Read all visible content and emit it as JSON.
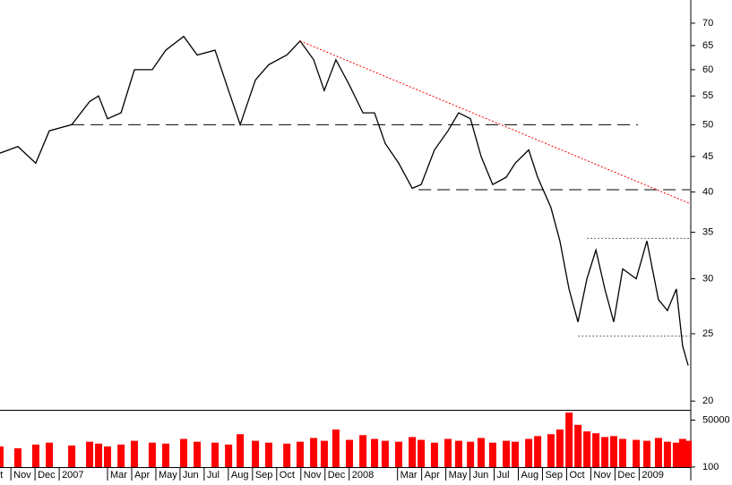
{
  "chart_data": [
    {
      "type": "line",
      "log_scale": true,
      "x": [
        0.55,
        1.29,
        2.03,
        2.59,
        3.52,
        4.26,
        4.63,
        5.0,
        5.56,
        6.11,
        6.85,
        7.41,
        8.15,
        8.71,
        9.45,
        10.01,
        10.49,
        11.12,
        11.67,
        12.42,
        12.97,
        13.53,
        13.97,
        14.45,
        15.01,
        15.57,
        16.05,
        16.49,
        17.05,
        17.61,
        17.98,
        18.53,
        19.09,
        19.53,
        20.02,
        20.46,
        20.94,
        21.5,
        21.87,
        22.43,
        22.8,
        23.35,
        23.72,
        24.1,
        24.47,
        24.84,
        25.21,
        25.58,
        25.95,
        26.32,
        26.88,
        27.32,
        27.8,
        28.17,
        28.54,
        28.8,
        29.03
      ],
      "series": [
        {
          "color": "#000000",
          "values": [
            45.5,
            46.5,
            44,
            49,
            50,
            54,
            55,
            51,
            52,
            60,
            60,
            64,
            67,
            63,
            64,
            56,
            50,
            58,
            61,
            63,
            66,
            62,
            56,
            62,
            57,
            52,
            52,
            47,
            44,
            40.5,
            41,
            46,
            49,
            52,
            51,
            45,
            41,
            42,
            44,
            46,
            42,
            38,
            34,
            29,
            26,
            30,
            33,
            29,
            26,
            31,
            30,
            34,
            28,
            27,
            29,
            24,
            22.5
          ]
        }
      ],
      "xlim": [
        0.55,
        29.1
      ],
      "ylim": [
        19.6,
        75.6
      ],
      "yticks": [
        20,
        25,
        30,
        35,
        40,
        45,
        50,
        55,
        60,
        65,
        70
      ],
      "xticks": [
        {
          "value": 0.45,
          "label": "t"
        },
        {
          "value": 1,
          "label": "Nov"
        },
        {
          "value": 2,
          "label": "Dec"
        },
        {
          "value": 3,
          "label": "2007"
        },
        {
          "value": 5,
          "label": "Mar"
        },
        {
          "value": 6,
          "label": "Apr"
        },
        {
          "value": 7,
          "label": "May"
        },
        {
          "value": 8,
          "label": "Jun"
        },
        {
          "value": 9,
          "label": "Jul"
        },
        {
          "value": 10,
          "label": "Aug"
        },
        {
          "value": 11,
          "label": "Sep"
        },
        {
          "value": 12,
          "label": "Oct"
        },
        {
          "value": 13,
          "label": "Nov"
        },
        {
          "value": 14,
          "label": "Dec"
        },
        {
          "value": 15,
          "label": "2008"
        },
        {
          "value": 17,
          "label": "Mar"
        },
        {
          "value": 18,
          "label": "Apr"
        },
        {
          "value": 19,
          "label": "May"
        },
        {
          "value": 20,
          "label": "Jun"
        },
        {
          "value": 21,
          "label": "Jul"
        },
        {
          "value": 22,
          "label": "Aug"
        },
        {
          "value": 23,
          "label": "Sep"
        },
        {
          "value": 24,
          "label": "Oct"
        },
        {
          "value": 25,
          "label": "Nov"
        },
        {
          "value": 26,
          "label": "Dec"
        },
        {
          "value": 27,
          "label": "2009"
        }
      ],
      "lines": [
        {
          "x": [
            3.52,
            26.95
          ],
          "y": [
            50,
            50
          ],
          "color": "#000000",
          "dash": "dashed"
        },
        {
          "x": [
            17.87,
            29.1
          ],
          "y": [
            40.3,
            40.3
          ],
          "color": "#000000",
          "dash": "dashed"
        },
        {
          "x": [
            24.84,
            29.1
          ],
          "y": [
            34.3,
            34.3
          ],
          "color": "#666666",
          "dash": "dotted"
        },
        {
          "x": [
            24.47,
            29.1
          ],
          "y": [
            24.8,
            24.8
          ],
          "color": "#666666",
          "dash": "dotted"
        },
        {
          "x": [
            12.97,
            29.1
          ],
          "y": [
            66,
            38.5
          ],
          "color": "#ff0000",
          "dash": "dotted"
        }
      ]
    },
    {
      "type": "bar",
      "color": "#ff0000",
      "x": [
        0.55,
        1.29,
        2.03,
        2.59,
        3.52,
        4.26,
        4.63,
        5.0,
        5.56,
        6.11,
        6.85,
        7.41,
        8.15,
        8.71,
        9.45,
        10.01,
        10.49,
        11.12,
        11.67,
        12.42,
        12.97,
        13.53,
        13.97,
        14.45,
        15.01,
        15.57,
        16.05,
        16.49,
        17.05,
        17.61,
        17.98,
        18.53,
        19.09,
        19.53,
        20.02,
        20.46,
        20.94,
        21.5,
        21.87,
        22.43,
        22.8,
        23.35,
        23.72,
        24.1,
        24.47,
        24.84,
        25.21,
        25.58,
        25.95,
        26.32,
        26.88,
        27.32,
        27.8,
        28.17,
        28.54,
        28.8,
        29.03
      ],
      "values": [
        22000,
        20000,
        24000,
        26000,
        23000,
        27000,
        25000,
        22000,
        24000,
        28000,
        26000,
        25000,
        30000,
        27000,
        26000,
        24000,
        35000,
        28000,
        26000,
        25000,
        27000,
        31000,
        28000,
        40000,
        29000,
        34000,
        30000,
        28000,
        27000,
        32000,
        29000,
        26000,
        30000,
        28000,
        27000,
        31000,
        26000,
        28000,
        27000,
        30000,
        33000,
        35000,
        40000,
        58000,
        45000,
        38000,
        36000,
        32000,
        33000,
        30000,
        29000,
        28000,
        31000,
        27000,
        26000,
        30000,
        28000
      ],
      "xlim": [
        0.55,
        29.1
      ],
      "ylim": [
        0,
        60000
      ],
      "yticks": [
        100,
        50000
      ]
    }
  ]
}
